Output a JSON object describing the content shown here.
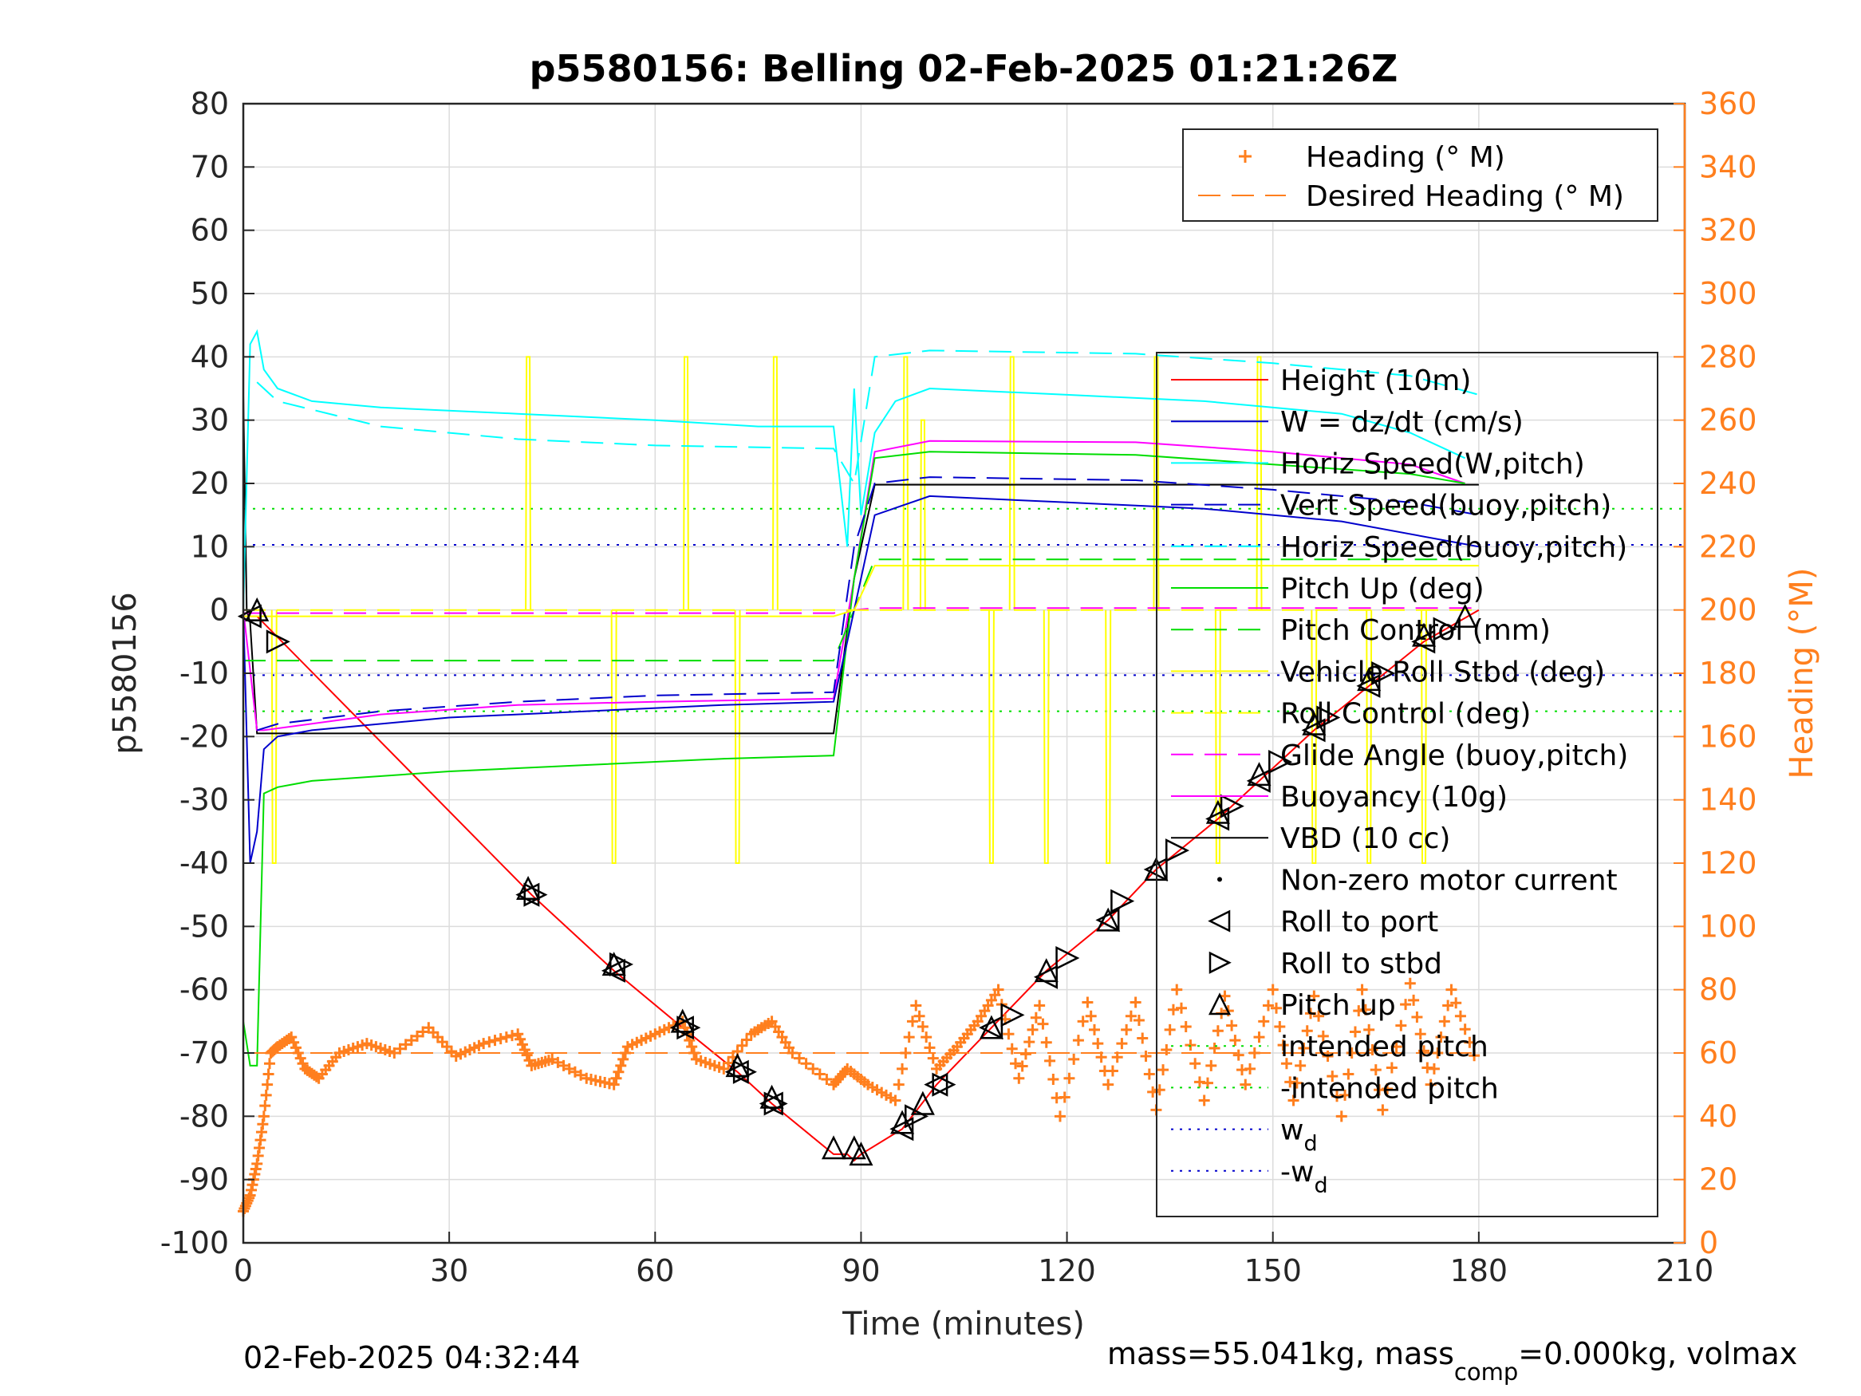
{
  "chart_data": {
    "type": "line",
    "title": "p5580156: Belling 02-Feb-2025 01:21:26Z",
    "xlabel": "Time (minutes)",
    "ylabel": "p5580156",
    "y2label": "Heading (°M)",
    "xlim": [
      0,
      210
    ],
    "ylim": [
      -100,
      80
    ],
    "y2lim": [
      0,
      360
    ],
    "xticks": [
      "0",
      "30",
      "60",
      "90",
      "120",
      "150",
      "180",
      "210"
    ],
    "yticks": [
      "80",
      "70",
      "60",
      "50",
      "40",
      "30",
      "20",
      "10",
      "0",
      "-10",
      "-20",
      "-30",
      "-40",
      "-50",
      "-60",
      "-70",
      "-80",
      "-90",
      "-100"
    ],
    "y2ticks": [
      "360",
      "340",
      "320",
      "300",
      "280",
      "260",
      "240",
      "220",
      "200",
      "180",
      "160",
      "140",
      "120",
      "100",
      "80",
      "60",
      "40",
      "20",
      "0"
    ],
    "grid": true,
    "legend_top": {
      "placement": "top-right",
      "items": [
        {
          "label": "Heading (° M)",
          "color": "#ff7f1e",
          "style": "plus"
        },
        {
          "label": "Desired Heading (° M)",
          "color": "#ff7f1e",
          "style": "dash"
        }
      ]
    },
    "legend_main": {
      "placement": "right",
      "items": [
        {
          "label": "Height (10m)",
          "color": "#ff0000",
          "style": "solid"
        },
        {
          "label": "W = dz/dt (cm/s)",
          "color": "#0000cc",
          "style": "solid"
        },
        {
          "label": "Horiz Speed(W,pitch)",
          "color": "#00ffff",
          "style": "solid"
        },
        {
          "label": "Vert Speed(buoy,pitch)",
          "color": "#0000cc",
          "style": "dash"
        },
        {
          "label": "Horiz Speed(buoy,pitch)",
          "color": "#00ffff",
          "style": "dash"
        },
        {
          "label": "Pitch Up (deg)",
          "color": "#00dd00",
          "style": "solid"
        },
        {
          "label": "Pitch Control (mm)",
          "color": "#00dd00",
          "style": "dash"
        },
        {
          "label": "Vehicle Roll Stbd (deg)",
          "color": "#ffff00",
          "style": "solid"
        },
        {
          "label": "Roll Control (deg)",
          "color": "#ffff00",
          "style": "dash"
        },
        {
          "label": "Glide Angle (buoy,pitch)",
          "color": "#ff00ff",
          "style": "dash"
        },
        {
          "label": "Buoyancy (10g)",
          "color": "#ff00ff",
          "style": "solid"
        },
        {
          "label": "VBD (10 cc)",
          "color": "#000000",
          "style": "solid"
        },
        {
          "label": "Non-zero motor current",
          "color": "#000000",
          "style": "dot"
        },
        {
          "label": "Roll to port",
          "color": "#000000",
          "style": "tri-left"
        },
        {
          "label": "Roll to stbd",
          "color": "#000000",
          "style": "tri-right"
        },
        {
          "label": "Pitch up",
          "color": "#000000",
          "style": "tri-up"
        },
        {
          "label": "intended pitch",
          "color": "#00dd00",
          "style": "dotted"
        },
        {
          "label": "-intended pitch",
          "color": "#00dd00",
          "style": "dotted"
        },
        {
          "label": "w",
          "sub": "d",
          "color": "#0000cc",
          "style": "dotted"
        },
        {
          "label": "-w",
          "sub": "d",
          "color": "#0000cc",
          "style": "dotted"
        }
      ]
    },
    "series": [
      {
        "name": "Height (10m)",
        "color": "#ff0000",
        "axis": "left",
        "x": [
          0,
          2,
          42,
          54,
          64,
          72,
          77,
          86,
          88,
          89,
          90,
          96,
          101,
          109,
          117,
          126,
          133,
          142,
          148,
          156,
          164,
          172,
          180
        ],
        "y": [
          -1,
          -1,
          -45,
          -57,
          -66,
          -73,
          -78,
          -86,
          -86,
          -87,
          -86,
          -82,
          -75,
          -66,
          -57,
          -49,
          -41,
          -33,
          -27,
          -19,
          -12,
          -5,
          0
        ]
      },
      {
        "name": "VBD (10 cc)",
        "color": "#000000",
        "axis": "left",
        "x": [
          0,
          0.5,
          1,
          2,
          86,
          89,
          92,
          180
        ],
        "y": [
          34,
          0,
          -2,
          -19.5,
          -19.5,
          5,
          19.8,
          19.8
        ]
      },
      {
        "name": "Buoyancy (10g)",
        "color": "#ff00ff",
        "axis": "left",
        "x": [
          0,
          2,
          3,
          20,
          40,
          60,
          86,
          89,
          92,
          100,
          130,
          150,
          170,
          178
        ],
        "y": [
          0,
          -19,
          -19,
          -16.5,
          -15,
          -14.5,
          -14,
          5,
          25,
          26.7,
          26.5,
          25,
          23,
          20
        ]
      },
      {
        "name": "Glide Angle (buoy,pitch)",
        "color": "#ff00ff",
        "axis": "left",
        "x": [
          0,
          86,
          89,
          92,
          180
        ],
        "y": [
          -0.5,
          -0.5,
          0,
          0.3,
          0.3
        ]
      },
      {
        "name": "Pitch Up (deg)",
        "color": "#00dd00",
        "axis": "left",
        "x": [
          0,
          1,
          2,
          3,
          5,
          10,
          30,
          50,
          70,
          86,
          89,
          92,
          100,
          130,
          150,
          170,
          178
        ],
        "y": [
          -65,
          -72,
          -72,
          -29,
          -28,
          -27,
          -25.5,
          -24.5,
          -23.5,
          -23,
          5,
          24,
          25,
          24.5,
          23,
          21.5,
          20
        ]
      },
      {
        "name": "Pitch Control (mm)",
        "color": "#00dd00",
        "axis": "left",
        "x": [
          0,
          86,
          89,
          92,
          180
        ],
        "y": [
          -8,
          -8,
          0,
          8,
          8
        ]
      },
      {
        "name": "Horiz Speed(W,pitch)",
        "color": "#00ffff",
        "axis": "left",
        "x": [
          0,
          1,
          2,
          3,
          5,
          10,
          20,
          40,
          60,
          75,
          86,
          88,
          89,
          90,
          92,
          95,
          100,
          120,
          140,
          160,
          170,
          178
        ],
        "y": [
          0,
          42,
          44,
          38,
          35,
          33,
          32,
          31,
          30,
          29,
          29,
          10,
          35,
          15,
          28,
          33,
          35,
          34,
          33,
          31,
          28,
          24
        ]
      },
      {
        "name": "Horiz Speed(buoy,pitch)",
        "color": "#00ffff",
        "axis": "left",
        "x": [
          2,
          5,
          20,
          40,
          60,
          86,
          89,
          92,
          100,
          130,
          150,
          170,
          180
        ],
        "y": [
          36,
          33,
          29,
          27,
          26,
          25.5,
          20,
          40,
          41,
          40.5,
          39,
          37,
          34
        ]
      },
      {
        "name": "W = dz/dt (cm/s)",
        "color": "#0000cc",
        "axis": "left",
        "x": [
          0,
          1,
          2,
          3,
          5,
          10,
          30,
          50,
          70,
          86,
          88,
          90,
          92,
          100,
          120,
          140,
          160,
          175,
          180
        ],
        "y": [
          0,
          -40,
          -35,
          -22,
          -20,
          -19,
          -17,
          -16,
          -15,
          -14.5,
          -5,
          5,
          15,
          18,
          17,
          16,
          14,
          11,
          10
        ]
      },
      {
        "name": "Vert Speed(buoy,pitch)",
        "color": "#0000cc",
        "axis": "left",
        "x": [
          2,
          5,
          20,
          40,
          60,
          86,
          89,
          92,
          100,
          130,
          150,
          170,
          180
        ],
        "y": [
          -19,
          -18,
          -16,
          -14.5,
          -13.5,
          -13,
          10,
          20,
          21,
          20.5,
          19,
          17,
          15
        ]
      },
      {
        "name": "Vehicle Roll Stbd (deg)",
        "color": "#ffff00",
        "axis": "left",
        "x": [
          0,
          86,
          89,
          92,
          180
        ],
        "y": [
          -1,
          -1,
          0,
          7,
          7
        ]
      },
      {
        "name": "Roll Control (deg)",
        "color": "#ffff00",
        "axis": "left",
        "x": [
          0,
          180
        ],
        "y": [
          0,
          0
        ]
      },
      {
        "name": "Heading (° M)",
        "color": "#ff7f1e",
        "axis": "right",
        "x": [
          0,
          1,
          2,
          3,
          4,
          5,
          7,
          9,
          11,
          14,
          18,
          22,
          27,
          31,
          35,
          40,
          42,
          45,
          50,
          54,
          56,
          60,
          64,
          66,
          70,
          74,
          77,
          80,
          86,
          88,
          91,
          95,
          98,
          101,
          104,
          107,
          110,
          113,
          116,
          119,
          123,
          126,
          130,
          133,
          136,
          140,
          143,
          146,
          150,
          153,
          156,
          160,
          163,
          166,
          170,
          173,
          176,
          180
        ],
        "y": [
          10,
          15,
          25,
          40,
          60,
          62,
          65,
          55,
          52,
          60,
          63,
          60,
          68,
          59,
          63,
          66,
          56,
          58,
          52,
          50,
          62,
          66,
          70,
          58,
          55,
          66,
          70,
          60,
          50,
          55,
          50,
          45,
          75,
          55,
          62,
          70,
          80,
          52,
          75,
          40,
          76,
          50,
          76,
          42,
          80,
          45,
          78,
          50,
          80,
          45,
          78,
          40,
          80,
          42,
          82,
          50,
          80,
          55
        ]
      },
      {
        "name": "Desired Heading (° M)",
        "color": "#ff7f1e",
        "axis": "right",
        "x": [
          0,
          180
        ],
        "y": [
          60,
          60
        ]
      }
    ],
    "reference_lines": [
      {
        "name": "intended pitch",
        "y": 16,
        "color": "#00dd00"
      },
      {
        "name": "-intended pitch",
        "y": -16,
        "color": "#00dd00"
      },
      {
        "name": "w_d",
        "y": 10.3,
        "color": "#0000cc"
      },
      {
        "name": "-w_d",
        "y": -10.3,
        "color": "#0000cc"
      }
    ],
    "yellow_spikes": [
      {
        "x": 4.5,
        "to": -40
      },
      {
        "x": 41.5,
        "to": 40
      },
      {
        "x": 54,
        "to": -40
      },
      {
        "x": 64.5,
        "to": 40
      },
      {
        "x": 72,
        "to": -40
      },
      {
        "x": 77.5,
        "to": 40
      },
      {
        "x": 96.5,
        "to": 40
      },
      {
        "x": 99,
        "to": 30
      },
      {
        "x": 109,
        "to": -40
      },
      {
        "x": 112,
        "to": 40
      },
      {
        "x": 117,
        "to": -40
      },
      {
        "x": 126,
        "to": -40
      },
      {
        "x": 133,
        "to": 40
      },
      {
        "x": 142,
        "to": -40
      },
      {
        "x": 148,
        "to": 40
      },
      {
        "x": 156,
        "to": -40
      },
      {
        "x": 164,
        "to": -40
      },
      {
        "x": 172,
        "to": -40
      }
    ],
    "roll_port_markers": [
      {
        "x": 1,
        "y": -1
      },
      {
        "x": 41.5,
        "y": -45
      },
      {
        "x": 54,
        "y": -57
      },
      {
        "x": 64,
        "y": -66
      },
      {
        "x": 72,
        "y": -73
      },
      {
        "x": 77,
        "y": -78
      },
      {
        "x": 96,
        "y": -82
      },
      {
        "x": 101,
        "y": -75
      },
      {
        "x": 109,
        "y": -66
      },
      {
        "x": 117,
        "y": -58
      },
      {
        "x": 126,
        "y": -49
      },
      {
        "x": 133,
        "y": -41
      },
      {
        "x": 142,
        "y": -33
      },
      {
        "x": 148,
        "y": -27
      },
      {
        "x": 156,
        "y": -19
      },
      {
        "x": 164,
        "y": -12
      },
      {
        "x": 172,
        "y": -5
      }
    ],
    "roll_stbd_markers": [
      {
        "x": 5,
        "y": -5
      },
      {
        "x": 42.5,
        "y": -45
      },
      {
        "x": 55,
        "y": -56
      },
      {
        "x": 64.8,
        "y": -66
      },
      {
        "x": 73,
        "y": -73
      },
      {
        "x": 77.5,
        "y": -78
      },
      {
        "x": 98,
        "y": -80
      },
      {
        "x": 102,
        "y": -75
      },
      {
        "x": 112,
        "y": -64
      },
      {
        "x": 120,
        "y": -55
      },
      {
        "x": 128,
        "y": -46
      },
      {
        "x": 136,
        "y": -38
      },
      {
        "x": 144,
        "y": -31
      },
      {
        "x": 151,
        "y": -24
      },
      {
        "x": 158,
        "y": -17
      },
      {
        "x": 166,
        "y": -10
      },
      {
        "x": 175,
        "y": -3
      }
    ],
    "pitch_up_markers": [
      {
        "x": 2,
        "y": 0
      },
      {
        "x": 41.5,
        "y": -44
      },
      {
        "x": 54,
        "y": -56
      },
      {
        "x": 64,
        "y": -65
      },
      {
        "x": 72,
        "y": -72
      },
      {
        "x": 77,
        "y": -77
      },
      {
        "x": 86,
        "y": -85
      },
      {
        "x": 89,
        "y": -85
      },
      {
        "x": 90,
        "y": -86
      },
      {
        "x": 96,
        "y": -81
      },
      {
        "x": 99,
        "y": -78
      },
      {
        "x": 109,
        "y": -66
      },
      {
        "x": 117,
        "y": -57
      },
      {
        "x": 126,
        "y": -49
      },
      {
        "x": 133,
        "y": -41
      },
      {
        "x": 142,
        "y": -32
      },
      {
        "x": 148,
        "y": -26
      },
      {
        "x": 156,
        "y": -18
      },
      {
        "x": 164,
        "y": -11
      },
      {
        "x": 172,
        "y": -4
      },
      {
        "x": 178,
        "y": -1
      }
    ]
  },
  "footer": {
    "timestamp": "02-Feb-2025 04:32:44",
    "mass_text": "mass=55.041kg, mass",
    "mass_sub": "comp",
    "mass_tail": "=0.000kg, volmax"
  }
}
